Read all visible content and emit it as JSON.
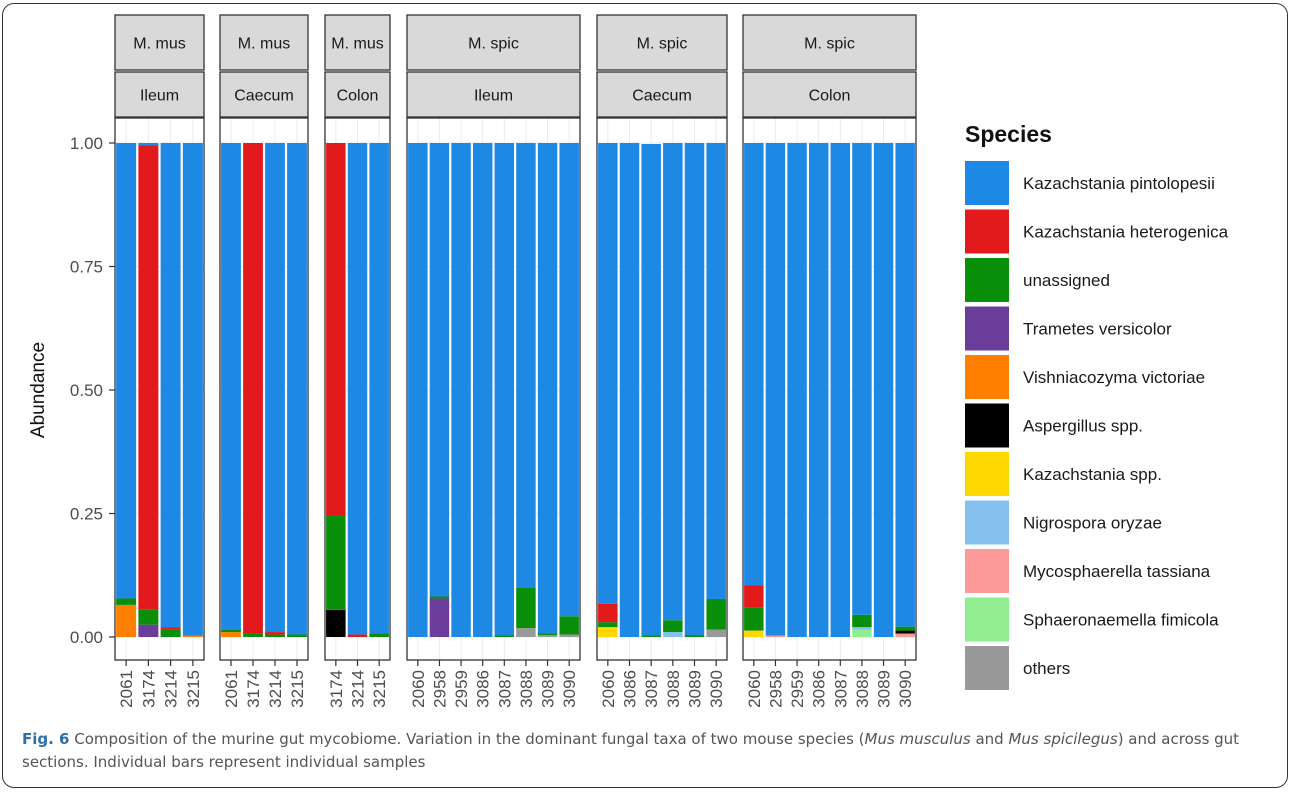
{
  "chart_data": {
    "type": "bar",
    "stacked": true,
    "ylabel": "Abundance",
    "ylim": [
      0,
      1
    ],
    "yticks": [
      "0.00",
      "0.25",
      "0.50",
      "0.75",
      "1.00"
    ],
    "legend_title": "Species",
    "legend_position": "right",
    "species": [
      {
        "name": "Kazachstania pintolopesii",
        "color": "#1e88e5"
      },
      {
        "name": "Kazachstania heterogenica",
        "color": "#e31a1c"
      },
      {
        "name": "unassigned",
        "color": "#0a8f0a"
      },
      {
        "name": "Trametes versicolor",
        "color": "#6a3d9a"
      },
      {
        "name": "Vishniacozyma victoriae",
        "color": "#ff7f00"
      },
      {
        "name": "Aspergillus spp.",
        "color": "#000000"
      },
      {
        "name": "Kazachstania spp.",
        "color": "#ffd700"
      },
      {
        "name": "Nigrospora oryzae",
        "color": "#85c1ee"
      },
      {
        "name": "Mycosphaerella tassiana",
        "color": "#fb9a99"
      },
      {
        "name": "Sphaeronaemella fimicola",
        "color": "#90ee90"
      },
      {
        "name": "others",
        "color": "#999999"
      }
    ],
    "panels": [
      {
        "species": "M. mus",
        "section": "Ileum",
        "samples": [
          {
            "id": "2061",
            "comp": [
              {
                "s": 4,
                "v": 0.065
              },
              {
                "s": 2,
                "v": 0.013
              },
              {
                "s": 0,
                "v": 0.922
              }
            ]
          },
          {
            "id": "3174",
            "comp": [
              {
                "s": 3,
                "v": 0.025
              },
              {
                "s": 2,
                "v": 0.03
              },
              {
                "s": 1,
                "v": 0.94
              },
              {
                "s": 0,
                "v": 0.005
              }
            ]
          },
          {
            "id": "3214",
            "comp": [
              {
                "s": 2,
                "v": 0.015
              },
              {
                "s": 1,
                "v": 0.005
              },
              {
                "s": 0,
                "v": 0.98
              }
            ]
          },
          {
            "id": "3215",
            "comp": [
              {
                "s": 4,
                "v": 0.003
              },
              {
                "s": 0,
                "v": 0.997
              }
            ]
          }
        ]
      },
      {
        "species": "M. mus",
        "section": "Caecum",
        "samples": [
          {
            "id": "2061",
            "comp": [
              {
                "s": 4,
                "v": 0.01
              },
              {
                "s": 2,
                "v": 0.005
              },
              {
                "s": 0,
                "v": 0.985
              }
            ]
          },
          {
            "id": "3174",
            "comp": [
              {
                "s": 2,
                "v": 0.008
              },
              {
                "s": 1,
                "v": 0.992
              }
            ]
          },
          {
            "id": "3214",
            "comp": [
              {
                "s": 2,
                "v": 0.005
              },
              {
                "s": 1,
                "v": 0.005
              },
              {
                "s": 0,
                "v": 0.99
              }
            ]
          },
          {
            "id": "3215",
            "comp": [
              {
                "s": 2,
                "v": 0.005
              },
              {
                "s": 0,
                "v": 0.995
              }
            ]
          }
        ]
      },
      {
        "species": "M. mus",
        "section": "Colon",
        "samples": [
          {
            "id": "3174",
            "comp": [
              {
                "s": 5,
                "v": 0.055
              },
              {
                "s": 2,
                "v": 0.19
              },
              {
                "s": 1,
                "v": 0.755
              }
            ]
          },
          {
            "id": "3214",
            "comp": [
              {
                "s": 1,
                "v": 0.005
              },
              {
                "s": 0,
                "v": 0.995
              }
            ]
          },
          {
            "id": "3215",
            "comp": [
              {
                "s": 2,
                "v": 0.007
              },
              {
                "s": 0,
                "v": 0.993
              }
            ]
          }
        ]
      },
      {
        "species": "M. spic",
        "section": "Ileum",
        "samples": [
          {
            "id": "2060",
            "comp": [
              {
                "s": 0,
                "v": 1.0
              }
            ]
          },
          {
            "id": "2958",
            "comp": [
              {
                "s": 3,
                "v": 0.078
              },
              {
                "s": 2,
                "v": 0.004
              },
              {
                "s": 0,
                "v": 0.918
              }
            ]
          },
          {
            "id": "2959",
            "comp": [
              {
                "s": 0,
                "v": 1.0
              }
            ]
          },
          {
            "id": "3086",
            "comp": [
              {
                "s": 0,
                "v": 1.0
              }
            ]
          },
          {
            "id": "3087",
            "comp": [
              {
                "s": 2,
                "v": 0.003
              },
              {
                "s": 0,
                "v": 0.997
              }
            ]
          },
          {
            "id": "3088",
            "comp": [
              {
                "s": 10,
                "v": 0.018
              },
              {
                "s": 2,
                "v": 0.082
              },
              {
                "s": 0,
                "v": 0.9
              }
            ]
          },
          {
            "id": "3089",
            "comp": [
              {
                "s": 10,
                "v": 0.004
              },
              {
                "s": 2,
                "v": 0.003
              },
              {
                "s": 0,
                "v": 0.993
              }
            ]
          },
          {
            "id": "3090",
            "comp": [
              {
                "s": 10,
                "v": 0.005
              },
              {
                "s": 2,
                "v": 0.037
              },
              {
                "s": 0,
                "v": 0.958
              }
            ]
          }
        ]
      },
      {
        "species": "M. spic",
        "section": "Caecum",
        "samples": [
          {
            "id": "2060",
            "comp": [
              {
                "s": 6,
                "v": 0.02
              },
              {
                "s": 2,
                "v": 0.01
              },
              {
                "s": 1,
                "v": 0.037
              },
              {
                "s": 0,
                "v": 0.933
              }
            ]
          },
          {
            "id": "3086",
            "comp": [
              {
                "s": 0,
                "v": 1.0
              }
            ]
          },
          {
            "id": "3087",
            "comp": [
              {
                "s": 2,
                "v": 0.003
              },
              {
                "s": 0,
                "v": 0.995
              }
            ]
          },
          {
            "id": "3088",
            "comp": [
              {
                "s": 7,
                "v": 0.01
              },
              {
                "s": 2,
                "v": 0.024
              },
              {
                "s": 0,
                "v": 0.966
              }
            ]
          },
          {
            "id": "3089",
            "comp": [
              {
                "s": 2,
                "v": 0.004
              },
              {
                "s": 0,
                "v": 0.996
              }
            ]
          },
          {
            "id": "3090",
            "comp": [
              {
                "s": 10,
                "v": 0.015
              },
              {
                "s": 2,
                "v": 0.062
              },
              {
                "s": 0,
                "v": 0.923
              }
            ]
          }
        ]
      },
      {
        "species": "M. spic",
        "section": "Colon",
        "samples": [
          {
            "id": "2060",
            "comp": [
              {
                "s": 6,
                "v": 0.013
              },
              {
                "s": 2,
                "v": 0.047
              },
              {
                "s": 1,
                "v": 0.045
              },
              {
                "s": 0,
                "v": 0.895
              }
            ]
          },
          {
            "id": "2958",
            "comp": [
              {
                "s": 8,
                "v": 0.003
              },
              {
                "s": 0,
                "v": 0.997
              }
            ]
          },
          {
            "id": "2959",
            "comp": [
              {
                "s": 0,
                "v": 1.0
              }
            ]
          },
          {
            "id": "3086",
            "comp": [
              {
                "s": 0,
                "v": 1.0
              }
            ]
          },
          {
            "id": "3087",
            "comp": [
              {
                "s": 0,
                "v": 1.0
              }
            ]
          },
          {
            "id": "3088",
            "comp": [
              {
                "s": 9,
                "v": 0.015
              },
              {
                "s": 7,
                "v": 0.005
              },
              {
                "s": 2,
                "v": 0.025
              },
              {
                "s": 0,
                "v": 0.955
              }
            ]
          },
          {
            "id": "3089",
            "comp": [
              {
                "s": 0,
                "v": 1.0
              }
            ]
          },
          {
            "id": "3090",
            "comp": [
              {
                "s": 8,
                "v": 0.007
              },
              {
                "s": 5,
                "v": 0.006
              },
              {
                "s": 2,
                "v": 0.008
              },
              {
                "s": 0,
                "v": 0.979
              }
            ]
          }
        ]
      }
    ]
  },
  "caption": {
    "label": "Fig. 6",
    "text_1": " Composition of the murine gut mycobiome. Variation in the dominant fungal taxa of two mouse species (",
    "italic_1": "Mus musculus",
    "text_2": " and ",
    "italic_2": "Mus spicilegus",
    "text_3": ") and across gut sections. Individual bars represent individual samples"
  }
}
